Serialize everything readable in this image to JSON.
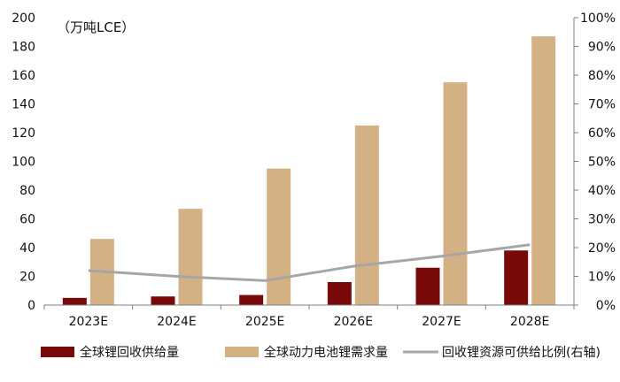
{
  "chart_data": {
    "type": "bar",
    "unit_label": "（万吨LCE）",
    "categories": [
      "2023E",
      "2024E",
      "2025E",
      "2026E",
      "2027E",
      "2028E"
    ],
    "series": [
      {
        "name": "全球锂回收供给量",
        "kind": "bar",
        "axis": "left",
        "color": "#7a0a0a",
        "values": [
          5,
          6,
          7,
          16,
          26,
          38
        ]
      },
      {
        "name": "全球动力电池锂需求量",
        "kind": "bar",
        "axis": "left",
        "color": "#d3b185",
        "values": [
          46,
          67,
          95,
          125,
          155,
          187
        ]
      },
      {
        "name": "回收锂资源可供给比例(右轴)",
        "kind": "line",
        "axis": "right",
        "color": "#a6a6a6",
        "values": [
          0.12,
          0.1,
          0.085,
          0.135,
          0.17,
          0.21
        ]
      }
    ],
    "left_axis": {
      "ylim": [
        0,
        200
      ],
      "ticks": [
        "0",
        "20",
        "40",
        "60",
        "80",
        "100",
        "120",
        "140",
        "160",
        "180",
        "200"
      ]
    },
    "right_axis": {
      "ylim": [
        0,
        1
      ],
      "ticks": [
        "0%",
        "10%",
        "20%",
        "30%",
        "40%",
        "50%",
        "60%",
        "70%",
        "80%",
        "90%",
        "100%"
      ]
    },
    "legend_position": "bottom",
    "grid": false
  }
}
